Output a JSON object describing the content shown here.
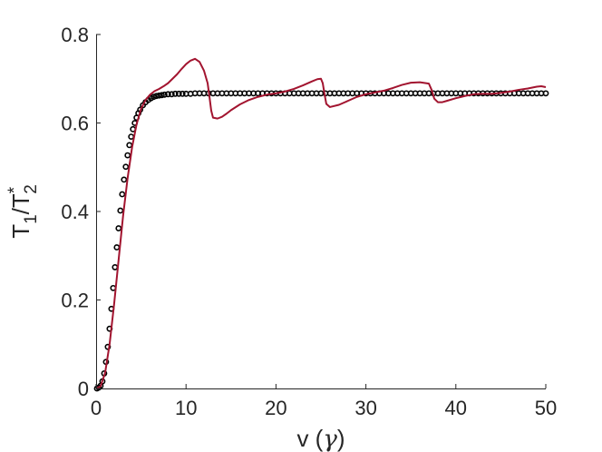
{
  "chart_data": {
    "type": "scatter",
    "xlabel": "v (γ)",
    "ylabel": "T1/T2*",
    "xlim": [
      0,
      50
    ],
    "ylim": [
      0,
      0.8
    ],
    "x_ticks": [
      "0",
      "10",
      "20",
      "30",
      "40",
      "50"
    ],
    "y_ticks": [
      "0",
      "0.2",
      "0.4",
      "0.6",
      "0.8"
    ],
    "grid": false,
    "legend": "none",
    "colors": {
      "markers": "#000000",
      "line": "#a2142f"
    },
    "series": [
      {
        "style": "markers",
        "marker": "circle-open",
        "color": "#000000",
        "x": [
          0.1,
          0.3,
          0.5,
          0.7,
          0.9,
          1.1,
          1.3,
          1.5,
          1.7,
          1.9,
          2.1,
          2.3,
          2.5,
          2.7,
          2.9,
          3.1,
          3.3,
          3.5,
          3.7,
          3.9,
          4.1,
          4.3,
          4.5,
          4.7,
          4.9,
          5.2,
          5.5,
          5.8,
          6.1,
          6.4,
          6.7,
          7.0,
          7.3,
          7.6,
          8.0,
          8.4,
          8.8,
          9.2,
          9.6,
          10.0,
          10.5,
          11.0,
          11.5,
          12.0,
          12.5,
          13.0,
          13.5,
          14.0,
          14.5,
          15.0,
          15.5,
          16.0,
          16.5,
          17.0,
          17.5,
          18.0,
          18.5,
          19.0,
          19.5,
          20.0,
          20.5,
          21.0,
          21.5,
          22.0,
          22.5,
          23.0,
          23.5,
          24.0,
          24.5,
          25.0,
          25.5,
          26.0,
          26.5,
          27.0,
          27.5,
          28.0,
          28.5,
          29.0,
          29.5,
          30.0,
          30.5,
          31.0,
          31.5,
          32.0,
          32.5,
          33.0,
          33.5,
          34.0,
          34.5,
          35.0,
          35.5,
          36.0,
          36.5,
          37.0,
          37.5,
          38.0,
          38.5,
          39.0,
          39.5,
          40.0,
          40.5,
          41.0,
          41.5,
          42.0,
          42.5,
          43.0,
          43.5,
          44.0,
          44.5,
          45.0,
          45.5,
          46.0,
          46.5,
          47.0,
          47.5,
          48.0,
          48.5,
          49.0,
          49.5,
          50.0
        ],
        "y": [
          0.0,
          0.002,
          0.006,
          0.016,
          0.034,
          0.06,
          0.094,
          0.135,
          0.18,
          0.227,
          0.274,
          0.319,
          0.362,
          0.402,
          0.439,
          0.472,
          0.501,
          0.527,
          0.55,
          0.569,
          0.586,
          0.6,
          0.612,
          0.622,
          0.63,
          0.64,
          0.647,
          0.652,
          0.656,
          0.659,
          0.661,
          0.662,
          0.663,
          0.664,
          0.665,
          0.665,
          0.666,
          0.666,
          0.666,
          0.666,
          0.666,
          0.667,
          0.667,
          0.667,
          0.667,
          0.667,
          0.667,
          0.667,
          0.667,
          0.667,
          0.667,
          0.667,
          0.667,
          0.667,
          0.667,
          0.667,
          0.667,
          0.667,
          0.667,
          0.667,
          0.667,
          0.667,
          0.667,
          0.667,
          0.667,
          0.667,
          0.667,
          0.667,
          0.667,
          0.667,
          0.667,
          0.667,
          0.667,
          0.667,
          0.667,
          0.667,
          0.667,
          0.667,
          0.667,
          0.667,
          0.667,
          0.667,
          0.667,
          0.667,
          0.667,
          0.667,
          0.667,
          0.667,
          0.667,
          0.667,
          0.667,
          0.667,
          0.667,
          0.667,
          0.667,
          0.667,
          0.667,
          0.667,
          0.667,
          0.667,
          0.667,
          0.667,
          0.667,
          0.667,
          0.667,
          0.667,
          0.667,
          0.667,
          0.667,
          0.667,
          0.667,
          0.667,
          0.667,
          0.667,
          0.667,
          0.667,
          0.667,
          0.667,
          0.667,
          0.667
        ]
      },
      {
        "style": "line",
        "color": "#a2142f",
        "x": [
          0.0,
          0.5,
          1.0,
          1.5,
          2.0,
          2.5,
          3.0,
          3.5,
          4.0,
          4.5,
          5.0,
          5.5,
          6.0,
          6.5,
          7.0,
          7.5,
          8.0,
          8.5,
          9.0,
          9.5,
          10.0,
          10.5,
          11.0,
          11.5,
          12.0,
          12.4,
          12.6,
          12.8,
          13.0,
          13.5,
          14.0,
          14.5,
          15.0,
          16.0,
          17.0,
          18.0,
          19.0,
          20.0,
          21.0,
          22.0,
          23.0,
          24.0,
          24.6,
          25.0,
          25.2,
          25.4,
          25.6,
          26.0,
          27.0,
          28.0,
          29.0,
          30.0,
          31.0,
          32.0,
          33.0,
          34.0,
          35.0,
          36.0,
          37.0,
          37.3,
          37.6,
          38.0,
          38.5,
          39.0,
          40.0,
          41.0,
          42.0,
          43.0,
          44.0,
          45.0,
          46.0,
          47.0,
          48.0,
          49.0,
          49.5,
          50.0
        ],
        "y": [
          0.0,
          0.005,
          0.035,
          0.1,
          0.19,
          0.29,
          0.39,
          0.475,
          0.545,
          0.597,
          0.632,
          0.652,
          0.664,
          0.672,
          0.677,
          0.683,
          0.69,
          0.7,
          0.71,
          0.722,
          0.733,
          0.741,
          0.745,
          0.738,
          0.718,
          0.69,
          0.66,
          0.628,
          0.612,
          0.61,
          0.614,
          0.621,
          0.629,
          0.642,
          0.652,
          0.659,
          0.664,
          0.667,
          0.671,
          0.677,
          0.685,
          0.694,
          0.699,
          0.7,
          0.69,
          0.665,
          0.643,
          0.636,
          0.641,
          0.65,
          0.659,
          0.665,
          0.669,
          0.673,
          0.679,
          0.686,
          0.691,
          0.692,
          0.689,
          0.675,
          0.655,
          0.647,
          0.647,
          0.65,
          0.656,
          0.661,
          0.665,
          0.666,
          0.666,
          0.668,
          0.671,
          0.675,
          0.678,
          0.682,
          0.683,
          0.681
        ]
      }
    ]
  }
}
